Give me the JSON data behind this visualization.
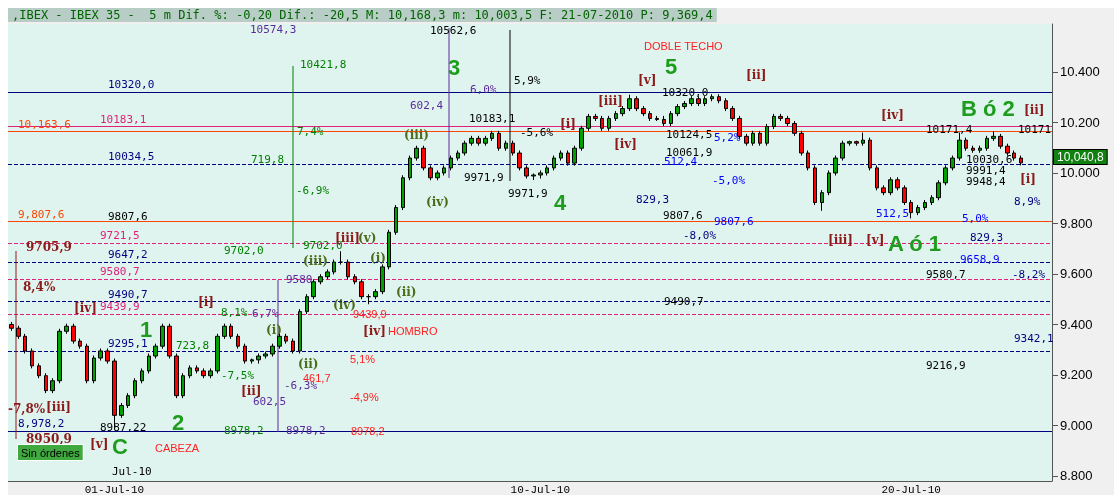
{
  "chart_data": {
    "type": "candlestick",
    "title": ",IBEX - IBEX 35 -  5 m Dif. %: -0,20 Dif.: -20,5 M: 10,168,3 m: 10,003,5 F: 21-07-2010 P: 9,369,4",
    "categories": [
      null,
      null,
      null,
      null,
      null,
      null,
      null,
      null,
      null,
      null,
      null,
      null,
      null,
      null,
      null,
      "01-Jul-10",
      null,
      null,
      null,
      null,
      null,
      null,
      null,
      null,
      null,
      null,
      null,
      null,
      null,
      null,
      null,
      null,
      null,
      null,
      null,
      null,
      null,
      null,
      null,
      null,
      null,
      null,
      null,
      null,
      null,
      null,
      null,
      null,
      null,
      null,
      null,
      null,
      null,
      null,
      null,
      null,
      null,
      null,
      null,
      null,
      null,
      null,
      null,
      null,
      null,
      null,
      null,
      null,
      null,
      null,
      null,
      null,
      null,
      null,
      null,
      null,
      null,
      "10-Jul-10",
      null,
      null,
      null,
      null,
      null,
      null,
      null,
      null,
      null,
      null,
      null,
      null,
      null,
      null,
      null,
      null,
      null,
      null,
      null,
      null,
      null,
      null,
      null,
      null,
      null,
      null,
      null,
      null,
      null,
      null,
      null,
      null,
      null,
      null,
      null,
      null,
      null,
      null,
      null,
      null,
      null,
      null,
      null,
      null,
      null,
      null,
      null,
      null,
      null,
      null,
      null,
      null,
      null,
      "20-Jul-10",
      null,
      null,
      null,
      null,
      null,
      null,
      null,
      null,
      null,
      null,
      null,
      null,
      null,
      null,
      null,
      null,
      null,
      null,
      null,
      null
    ],
    "ohlc": [
      [
        9400,
        9410,
        9375,
        9385
      ],
      [
        9385,
        9395,
        9343,
        9353
      ],
      [
        9353,
        9363,
        9285,
        9295
      ],
      [
        9295,
        9305,
        9226,
        9236
      ],
      [
        9236,
        9246,
        9187,
        9197
      ],
      [
        9197,
        9207,
        9128,
        9138
      ],
      [
        9138,
        9187,
        9128,
        9177
      ],
      [
        9177,
        9383,
        9167,
        9373
      ],
      [
        9373,
        9403,
        9363,
        9393
      ],
      [
        9393,
        9403,
        9324,
        9334
      ],
      [
        9334,
        9344,
        9304,
        9314
      ],
      [
        9314,
        9324,
        9167,
        9177
      ],
      [
        9177,
        9277,
        9167,
        9267
      ],
      [
        9267,
        9305,
        9257,
        9295
      ],
      [
        9295,
        9305,
        9245,
        9255
      ],
      [
        9255,
        9265,
        8990,
        9040
      ],
      [
        9040,
        9089,
        9030,
        9079
      ],
      [
        9079,
        9128,
        9069,
        9118
      ],
      [
        9118,
        9187,
        9108,
        9177
      ],
      [
        9177,
        9226,
        9167,
        9216
      ],
      [
        9216,
        9285,
        9206,
        9275
      ],
      [
        9275,
        9324,
        9265,
        9314
      ],
      [
        9314,
        9403,
        9304,
        9393
      ],
      [
        9393,
        9403,
        9265,
        9275
      ],
      [
        9275,
        9285,
        9108,
        9118
      ],
      [
        9118,
        9207,
        9108,
        9197
      ],
      [
        9197,
        9238,
        9187,
        9228
      ],
      [
        9228,
        9238,
        9206,
        9216
      ],
      [
        9216,
        9226,
        9187,
        9197
      ],
      [
        9197,
        9226,
        9187,
        9216
      ],
      [
        9216,
        9363,
        9206,
        9353
      ],
      [
        9353,
        9403,
        9343,
        9393
      ],
      [
        9393,
        9403,
        9343,
        9353
      ],
      [
        9353,
        9363,
        9304,
        9314
      ],
      [
        9314,
        9324,
        9245,
        9255
      ],
      [
        9255,
        9265,
        9245,
        9260
      ],
      [
        9260,
        9285,
        9245,
        9275
      ],
      [
        9275,
        9293,
        9265,
        9283
      ],
      [
        9283,
        9324,
        9273,
        9314
      ],
      [
        9314,
        9363,
        9304,
        9353
      ],
      [
        9353,
        9363,
        9324,
        9334
      ],
      [
        9334,
        9344,
        9285,
        9295
      ],
      [
        9295,
        9461,
        9285,
        9451
      ],
      [
        9451,
        9520,
        9441,
        9510
      ],
      [
        9510,
        9579,
        9500,
        9569
      ],
      [
        9569,
        9599,
        9559,
        9589
      ],
      [
        9589,
        9618,
        9579,
        9608
      ],
      [
        9608,
        9657,
        9598,
        9647
      ],
      [
        9647,
        9690,
        9637,
        9647
      ],
      [
        9647,
        9657,
        9579,
        9589
      ],
      [
        9589,
        9599,
        9559,
        9569
      ],
      [
        9569,
        9579,
        9500,
        9510
      ],
      [
        9510,
        9520,
        9480,
        9510
      ],
      [
        9510,
        9540,
        9500,
        9530
      ],
      [
        9530,
        9638,
        9520,
        9628
      ],
      [
        9628,
        9775,
        9618,
        9765
      ],
      [
        9765,
        9873,
        9755,
        9863
      ],
      [
        9863,
        9991,
        9853,
        9981
      ],
      [
        9981,
        10069,
        9971,
        10059
      ],
      [
        10059,
        10108,
        10049,
        10098
      ],
      [
        10098,
        10108,
        10010,
        10020
      ],
      [
        10020,
        10030,
        9971,
        9981
      ],
      [
        9981,
        10010,
        9971,
        10000
      ],
      [
        10000,
        10030,
        9990,
        10020
      ],
      [
        10020,
        10069,
        10010,
        10059
      ],
      [
        10059,
        10089,
        10049,
        10079
      ],
      [
        10079,
        10128,
        10069,
        10118
      ],
      [
        10118,
        10147,
        10108,
        10137
      ],
      [
        10137,
        10147,
        10108,
        10118
      ],
      [
        10118,
        10147,
        10108,
        10137
      ],
      [
        10137,
        10167,
        10127,
        10157
      ],
      [
        10157,
        10167,
        10088,
        10098
      ],
      [
        10098,
        10128,
        10088,
        10118
      ],
      [
        10118,
        10128,
        10069,
        10079
      ],
      [
        10079,
        10089,
        10010,
        10020
      ],
      [
        10020,
        10030,
        9978,
        9988
      ],
      [
        9988,
        9998,
        9972,
        9992
      ],
      [
        9992,
        10010,
        9978,
        10000
      ],
      [
        10000,
        10030,
        9990,
        10020
      ],
      [
        10020,
        10069,
        10010,
        10059
      ],
      [
        10059,
        10089,
        10049,
        10079
      ],
      [
        10079,
        10089,
        10029,
        10039
      ],
      [
        10039,
        10108,
        10029,
        10098
      ],
      [
        10098,
        10187,
        10088,
        10177
      ],
      [
        10177,
        10234,
        10167,
        10224
      ],
      [
        10224,
        10234,
        10206,
        10216
      ],
      [
        10216,
        10226,
        10167,
        10177
      ],
      [
        10177,
        10226,
        10167,
        10216
      ],
      [
        10216,
        10245,
        10206,
        10235
      ],
      [
        10235,
        10265,
        10225,
        10255
      ],
      [
        10255,
        10310,
        10245,
        10294
      ],
      [
        10294,
        10304,
        10245,
        10255
      ],
      [
        10255,
        10265,
        10225,
        10235
      ],
      [
        10235,
        10245,
        10206,
        10216
      ],
      [
        10216,
        10226,
        10206,
        10212
      ],
      [
        10212,
        10226,
        10186,
        10196
      ],
      [
        10196,
        10245,
        10186,
        10235
      ],
      [
        10235,
        10273,
        10225,
        10263
      ],
      [
        10263,
        10285,
        10253,
        10275
      ],
      [
        10275,
        10304,
        10265,
        10294
      ],
      [
        10294,
        10304,
        10265,
        10275
      ],
      [
        10275,
        10304,
        10265,
        10294
      ],
      [
        10294,
        10312,
        10284,
        10302
      ],
      [
        10302,
        10312,
        10276,
        10286
      ],
      [
        10286,
        10296,
        10245,
        10255
      ],
      [
        10255,
        10265,
        10206,
        10216
      ],
      [
        10216,
        10226,
        10135,
        10145
      ],
      [
        10145,
        10155,
        10108,
        10118
      ],
      [
        10118,
        10167,
        10108,
        10157
      ],
      [
        10157,
        10167,
        10108,
        10118
      ],
      [
        10118,
        10194,
        10108,
        10184
      ],
      [
        10184,
        10234,
        10174,
        10224
      ],
      [
        10224,
        10234,
        10206,
        10216
      ],
      [
        10216,
        10226,
        10186,
        10196
      ],
      [
        10196,
        10206,
        10147,
        10157
      ],
      [
        10157,
        10167,
        10069,
        10079
      ],
      [
        10079,
        10089,
        10010,
        10020
      ],
      [
        10020,
        10030,
        9873,
        9883
      ],
      [
        9883,
        9932,
        9850,
        9922
      ],
      [
        9922,
        10010,
        9912,
        10000
      ],
      [
        10000,
        10069,
        9990,
        10059
      ],
      [
        10059,
        10128,
        10049,
        10118
      ],
      [
        10118,
        10128,
        10108,
        10124
      ],
      [
        10124,
        10128,
        10108,
        10118
      ],
      [
        10118,
        10160,
        10108,
        10130
      ],
      [
        10130,
        10140,
        10010,
        10020
      ],
      [
        10020,
        10030,
        9931,
        9941
      ],
      [
        9941,
        9951,
        9912,
        9922
      ],
      [
        9922,
        9983,
        9912,
        9973
      ],
      [
        9973,
        9983,
        9931,
        9941
      ],
      [
        9941,
        9951,
        9873,
        9883
      ],
      [
        9883,
        9893,
        9820,
        9843
      ],
      [
        9843,
        9873,
        9833,
        9863
      ],
      [
        9863,
        9893,
        9853,
        9883
      ],
      [
        9883,
        9912,
        9873,
        9902
      ],
      [
        9902,
        9971,
        9892,
        9961
      ],
      [
        9961,
        10030,
        9951,
        10020
      ],
      [
        10020,
        10069,
        10010,
        10059
      ],
      [
        10059,
        10160,
        10049,
        10130
      ],
      [
        10130,
        10140,
        10088,
        10098
      ],
      [
        10098,
        10108,
        10080,
        10090
      ],
      [
        10090,
        10108,
        10080,
        10098
      ],
      [
        10098,
        10147,
        10088,
        10137
      ],
      [
        10137,
        10165,
        10127,
        10145
      ],
      [
        10145,
        10155,
        10096,
        10106
      ],
      [
        10106,
        10116,
        10069,
        10079
      ],
      [
        10079,
        10089,
        10049,
        10059
      ],
      [
        10059,
        10069,
        10030,
        10040
      ],
      null,
      null,
      null,
      null
    ],
    "ylim": [
      8780,
      10590
    ],
    "yticks": [
      {
        "value": 8800,
        "label": "8.800"
      },
      {
        "value": 9000,
        "label": "9.000"
      },
      {
        "value": 9200,
        "label": "9.200"
      },
      {
        "value": 9400,
        "label": "9.400"
      },
      {
        "value": 9600,
        "label": "9.600"
      },
      {
        "value": 9800,
        "label": "9.800"
      },
      {
        "value": 10000,
        "label": "10.000"
      },
      {
        "value": 10200,
        "label": "10.200"
      },
      {
        "value": 10400,
        "label": "10.400"
      }
    ],
    "ref_lines": [
      {
        "axis": "y",
        "value": 10320,
        "label": "10320,0",
        "color": "#000080"
      },
      {
        "axis": "y",
        "value": 10183.1,
        "label": "10183,1",
        "color": "#e0207a"
      },
      {
        "axis": "y",
        "value": 10163.6,
        "label": "10,163,6",
        "color": "#ff4500"
      },
      {
        "axis": "y",
        "value": 10034.5,
        "label": "10034,5",
        "color": "#000080",
        "line_style": "dashed"
      },
      {
        "axis": "y",
        "value": 9807.6,
        "label": "9,807,6",
        "color": "#ff4500"
      },
      {
        "axis": "y",
        "value": 9721.5,
        "label": "9721,5",
        "color": "#e0207a",
        "line_style": "dashed"
      },
      {
        "axis": "y",
        "value": 9647.2,
        "label": "9647,2",
        "color": "#000080",
        "line_style": "dashed"
      },
      {
        "axis": "y",
        "value": 9580.7,
        "label": "9580,7",
        "color": "#e0207a",
        "line_style": "dashed"
      },
      {
        "axis": "y",
        "value": 9490.7,
        "label": "9490,7",
        "color": "#000080",
        "line_style": "dashed"
      },
      {
        "axis": "y",
        "value": 9439.9,
        "label": "9439,9",
        "color": "#e0207a",
        "line_style": "dashed"
      },
      {
        "axis": "y",
        "value": 9295.1,
        "label": "9295,1",
        "color": "#000080",
        "line_style": "dashed"
      },
      {
        "axis": "y",
        "value": 8978.2,
        "label": "8,978,2",
        "color": "#000080"
      }
    ],
    "annotations": [
      "Jul-10",
      "10421,8",
      "10574,3",
      "10562,6",
      "DOBLE TECHO",
      "3",
      "5",
      "[v]",
      "[ii]",
      {
        "text": "10320,0",
        "y": 10320
      },
      "5,9%",
      "6,0%",
      "10183,1",
      "602,4",
      "(iii)",
      "-5,6%",
      "[i]",
      "[iii]",
      "[iv]",
      "(iv)",
      "4",
      "9971,9",
      "9971,9",
      "829,3",
      "9807,6",
      {
        "text": "9807,6",
        "y": 9807.6
      },
      "-8,0%",
      "-5,0%",
      "5,2%",
      "10124,5",
      "10061,9",
      "512,4",
      "[iv]",
      "[iii]",
      "[v]",
      "A ó 1",
      "B ó 2",
      "[ii]",
      {
        "text": "10171,4",
        "y": 10171.4
      },
      {
        "text": "10171",
        "y": 10171
      },
      "10030,6",
      "9991,4",
      "9948,4",
      "512,5",
      "5,0%",
      "[i]",
      "829,3",
      {
        "text": "9658,9",
        "y": 9658.9
      },
      "8,9%",
      "-8,2%",
      "9342,1",
      "9580,7",
      "9216,9",
      {
        "text": "9490,7",
        "y": 9490.7
      },
      {
        "text": "9705,9",
        "y": 9705.9
      },
      "8,4%",
      "-7,8%",
      "8950,9",
      "[iii]",
      "[iv]",
      "[v]",
      "C",
      "CABEZA",
      "1",
      "2",
      "723,8",
      "8,1%",
      "-7,5%",
      {
        "text": "8978,2",
        "y": 8978.2
      },
      "9702,0",
      "719,8",
      "7,4%",
      "-6,9%",
      "9702,0",
      "[i]",
      "[ii]",
      "602,5",
      "(i)",
      "(ii)",
      "6,7%",
      "-6,3%",
      {
        "text": "9580",
        "y": 9580
      },
      {
        "text": "8978,2",
        "y": 8978.2
      },
      "461,7",
      "5,1%",
      "-4,9%",
      {
        "text": "9439,9",
        "y": 9439.9
      },
      {
        "text": "8978,2",
        "y": 8978.2
      },
      "[iv]",
      "HOMBRO",
      "(iii)",
      "[iii]",
      "(v)",
      "(i)",
      "(iv)",
      "(ii)",
      "Sin órdenes",
      "8987,22",
      "10,040,8",
      "9807,6"
    ]
  }
}
